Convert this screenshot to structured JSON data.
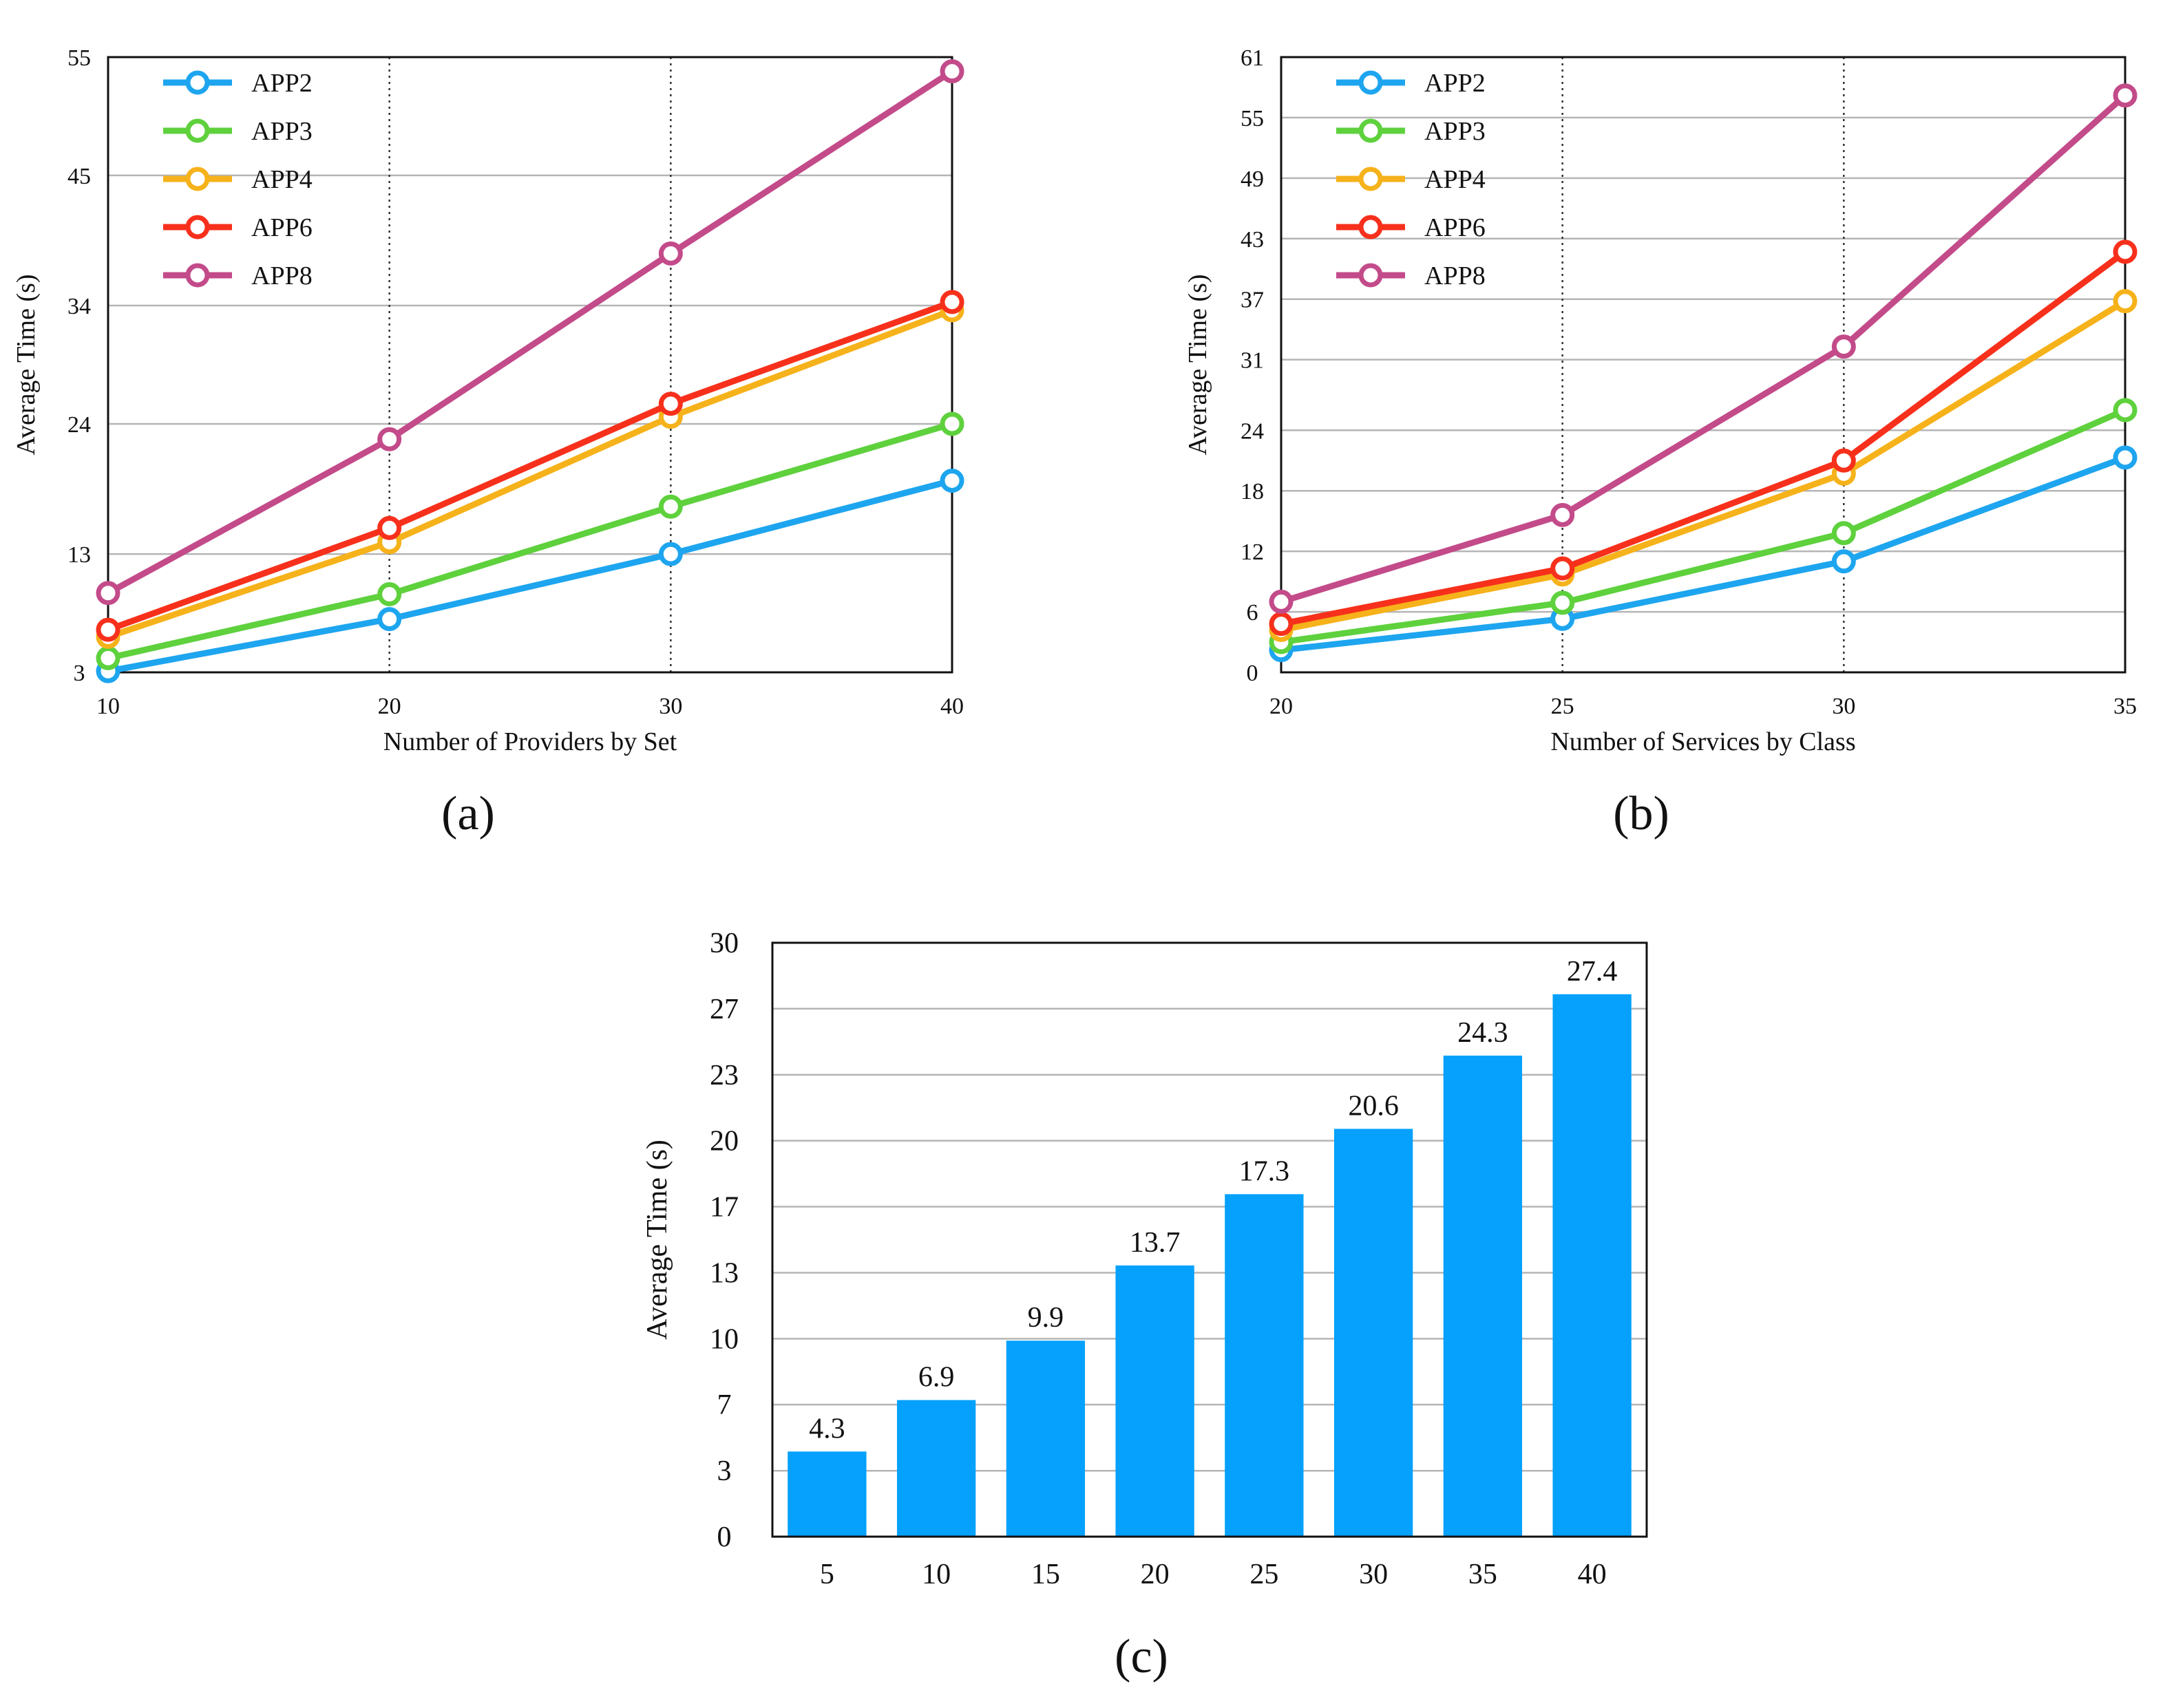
{
  "chart_data": [
    {
      "id": "a",
      "type": "line",
      "caption": "(a)",
      "xlabel": "Number of Providers by Set",
      "ylabel": "Average Time (s)",
      "x": [
        10,
        20,
        30,
        40
      ],
      "x_tick_labels": [
        "10",
        "20",
        "30",
        "40"
      ],
      "y_ticks": [
        3,
        13,
        24,
        34,
        45,
        55
      ],
      "y_tick_labels": [
        "3",
        "13",
        "24",
        "34",
        "45",
        "55"
      ],
      "ylim": [
        3,
        55
      ],
      "grid": "horizontal solid, vertical dotted",
      "legend_position": "top-left",
      "series": [
        {
          "name": "APP2",
          "color": "#1ea5ef",
          "values": [
            3.1,
            7.5,
            13.0,
            19.2
          ]
        },
        {
          "name": "APP3",
          "color": "#5ed13d",
          "values": [
            4.2,
            9.6,
            17.0,
            24.0
          ]
        },
        {
          "name": "APP4",
          "color": "#f6b21a",
          "values": [
            6.0,
            14.0,
            24.6,
            33.6
          ]
        },
        {
          "name": "APP6",
          "color": "#f7301c",
          "values": [
            6.6,
            15.2,
            25.7,
            34.3
          ]
        },
        {
          "name": "APP8",
          "color": "#c34b8a",
          "values": [
            9.7,
            22.7,
            38.4,
            53.8
          ]
        }
      ]
    },
    {
      "id": "b",
      "type": "line",
      "caption": "(b)",
      "xlabel": "Number of Services by Class",
      "ylabel": "Average Time (s)",
      "x": [
        20,
        25,
        30,
        35
      ],
      "x_tick_labels": [
        "20",
        "25",
        "30",
        "35"
      ],
      "y_ticks": [
        0,
        6,
        12,
        18,
        24,
        31,
        37,
        43,
        49,
        55,
        61
      ],
      "y_tick_labels": [
        "0",
        "6",
        "12",
        "18",
        "24",
        "31",
        "37",
        "43",
        "49",
        "55",
        "61"
      ],
      "ylim": [
        0,
        61
      ],
      "grid": "horizontal solid, vertical dotted",
      "legend_position": "top-left",
      "series": [
        {
          "name": "APP2",
          "color": "#1ea5ef",
          "values": [
            2.2,
            5.3,
            11.0,
            21.3
          ]
        },
        {
          "name": "APP3",
          "color": "#5ed13d",
          "values": [
            3.0,
            6.9,
            13.8,
            26.0
          ]
        },
        {
          "name": "APP4",
          "color": "#f6b21a",
          "values": [
            4.2,
            9.7,
            19.7,
            36.8
          ]
        },
        {
          "name": "APP6",
          "color": "#f7301c",
          "values": [
            4.8,
            10.3,
            21.0,
            41.7
          ]
        },
        {
          "name": "APP8",
          "color": "#c34b8a",
          "values": [
            7.0,
            15.6,
            32.3,
            57.2
          ]
        }
      ]
    },
    {
      "id": "c",
      "type": "bar",
      "caption": "(c)",
      "xlabel": "",
      "ylabel": "Average Time (s)",
      "categories": [
        "5",
        "10",
        "15",
        "20",
        "25",
        "30",
        "35",
        "40"
      ],
      "values": [
        4.3,
        6.9,
        9.9,
        13.7,
        17.3,
        20.6,
        24.3,
        27.4
      ],
      "value_labels": [
        "4.3",
        "6.9",
        "9.9",
        "13.7",
        "17.3",
        "20.6",
        "24.3",
        "27.4"
      ],
      "y_ticks": [
        0,
        3.33,
        6.67,
        10,
        13.33,
        16.67,
        20,
        23.33,
        26.67,
        30
      ],
      "y_tick_labels": [
        "0",
        "3",
        "7",
        "10",
        "13",
        "17",
        "20",
        "23",
        "27",
        "30"
      ],
      "ylim": [
        0,
        30
      ],
      "bar_color": "#05a1fc",
      "grid": "horizontal solid"
    }
  ]
}
